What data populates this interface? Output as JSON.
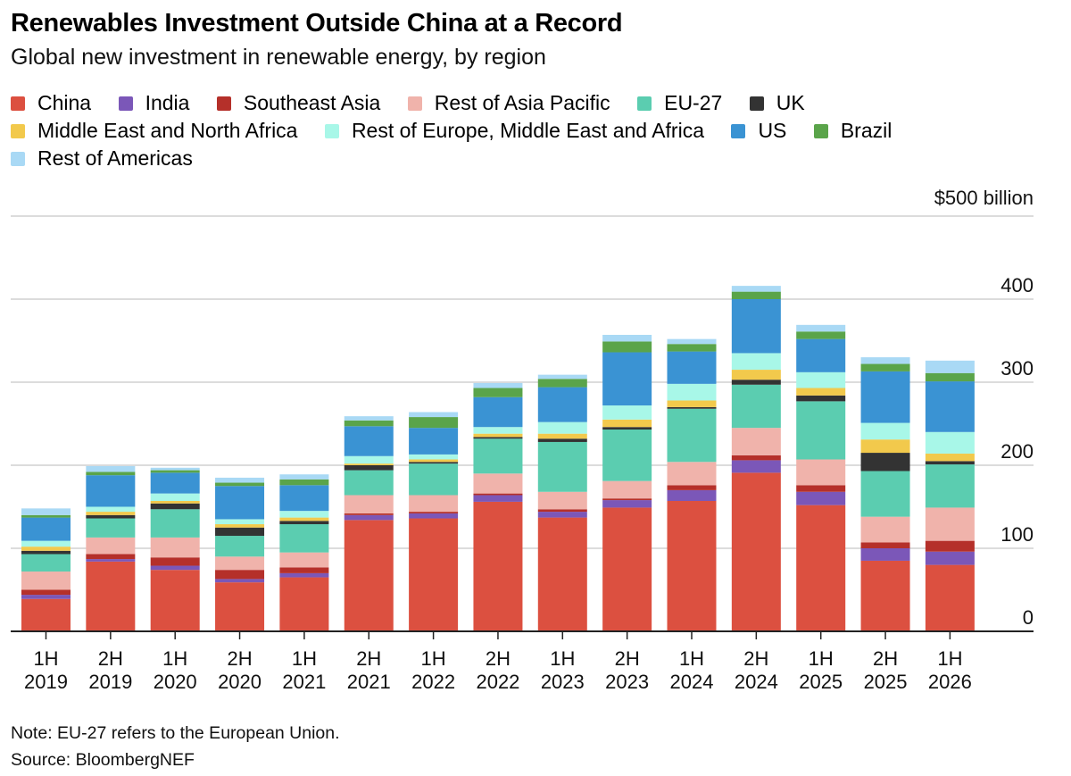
{
  "chart_data": {
    "type": "bar",
    "stacked": true,
    "title": "Renewables Investment Outside China at a Record",
    "subtitle": "Global new investment in renewable energy, by region",
    "unit_label": "$500 billion",
    "ylim": [
      0,
      500
    ],
    "yticks": [
      "0",
      "100",
      "200",
      "300",
      "400"
    ],
    "grid": true,
    "legend_position": "top",
    "categories": [
      "1H 2019",
      "2H 2019",
      "1H 2020",
      "2H 2020",
      "1H 2021",
      "2H 2021",
      "1H 2022",
      "2H 2022",
      "1H 2023",
      "2H 2023",
      "1H 2024",
      "2H 2024",
      "1H 2025",
      "2H 2025",
      "1H 2026"
    ],
    "category_lines": [
      [
        "1H",
        "2019"
      ],
      [
        "2H",
        "2019"
      ],
      [
        "1H",
        "2020"
      ],
      [
        "2H",
        "2020"
      ],
      [
        "1H",
        "2021"
      ],
      [
        "2H",
        "2021"
      ],
      [
        "1H",
        "2022"
      ],
      [
        "2H",
        "2022"
      ],
      [
        "1H",
        "2023"
      ],
      [
        "2H",
        "2023"
      ],
      [
        "1H",
        "2024"
      ],
      [
        "2H",
        "2024"
      ],
      [
        "1H",
        "2025"
      ],
      [
        "2H",
        "2025"
      ],
      [
        "1H",
        "2026"
      ]
    ],
    "series": [
      {
        "name": "China",
        "color": "#dc5040",
        "values": [
          39,
          84,
          74,
          59,
          65,
          134,
          136,
          156,
          137,
          149,
          157,
          191,
          152,
          85,
          80
        ]
      },
      {
        "name": "India",
        "color": "#7b57b8",
        "values": [
          5,
          3,
          5,
          4,
          5,
          6,
          6,
          8,
          7,
          9,
          13,
          15,
          16,
          15,
          16
        ]
      },
      {
        "name": "Southeast Asia",
        "color": "#b5302a",
        "values": [
          6,
          6,
          10,
          11,
          7,
          2,
          2,
          2,
          3,
          2,
          6,
          6,
          8,
          7,
          13
        ]
      },
      {
        "name": "Rest of Asia Pacific",
        "color": "#f0b3ab",
        "values": [
          22,
          20,
          24,
          16,
          18,
          22,
          20,
          24,
          21,
          21,
          28,
          33,
          31,
          31,
          40
        ]
      },
      {
        "name": "EU-27",
        "color": "#5bcdb0",
        "values": [
          21,
          23,
          34,
          25,
          34,
          30,
          38,
          42,
          60,
          62,
          64,
          52,
          70,
          55,
          52
        ]
      },
      {
        "name": "UK",
        "color": "#333333",
        "values": [
          4,
          4,
          7,
          10,
          4,
          6,
          2,
          2,
          4,
          3,
          2,
          6,
          7,
          22,
          4
        ]
      },
      {
        "name": "Middle East and North Africa",
        "color": "#f2c94c",
        "values": [
          5,
          4,
          3,
          4,
          4,
          2,
          3,
          4,
          6,
          9,
          8,
          12,
          9,
          16,
          9
        ]
      },
      {
        "name": "Rest of Europe, Middle East and Africa",
        "color": "#a8f7e8",
        "values": [
          7,
          6,
          9,
          6,
          8,
          9,
          6,
          8,
          14,
          17,
          20,
          20,
          19,
          20,
          26
        ]
      },
      {
        "name": "US",
        "color": "#3a93d3",
        "values": [
          28,
          38,
          25,
          40,
          31,
          36,
          32,
          36,
          42,
          64,
          39,
          65,
          40,
          62,
          61
        ]
      },
      {
        "name": "Brazil",
        "color": "#5aa44a",
        "values": [
          3,
          4,
          3,
          4,
          7,
          7,
          13,
          11,
          10,
          13,
          9,
          9,
          9,
          9,
          10
        ]
      },
      {
        "name": "Rest of Americas",
        "color": "#a9d9f5",
        "values": [
          8,
          7,
          3,
          6,
          6,
          5,
          6,
          6,
          5,
          8,
          6,
          7,
          8,
          8,
          15
        ]
      }
    ],
    "note": "Note: EU-27 refers to the European Union.",
    "source": "Source: BloombergNEF"
  }
}
